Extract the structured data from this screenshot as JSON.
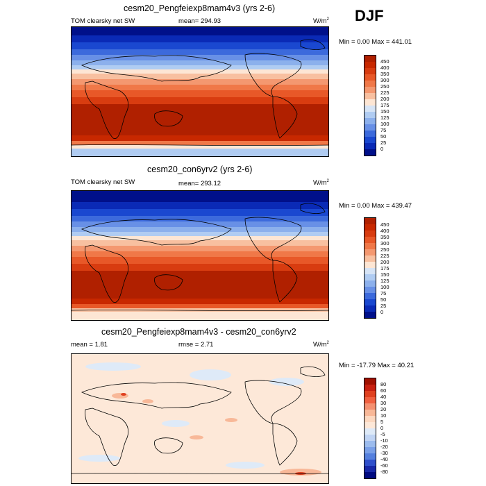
{
  "season": "DJF",
  "panels": [
    {
      "title": "cesm20_Pengfeiexp8mam4v3 (yrs 2-6)",
      "left_label": "TOM clearsky net SW",
      "mid_label": "mean=",
      "mid_value": "294.93",
      "units": "W/m",
      "units_sup": "2",
      "minmax": "Min =   0.00 Max = 441.01",
      "cbar_labels": [
        "450",
        "400",
        "350",
        "300",
        "250",
        "225",
        "200",
        "175",
        "150",
        "125",
        "100",
        "75",
        "50",
        "25",
        "0"
      ]
    },
    {
      "title": "cesm20_con6yrv2 (yrs 2-6)",
      "left_label": "TOM clearsky net SW",
      "mid_label": "mean=",
      "mid_value": "293.12",
      "units": "W/m",
      "units_sup": "2",
      "minmax": "Min =   0.00 Max = 439.47",
      "cbar_labels": [
        "450",
        "400",
        "350",
        "300",
        "250",
        "225",
        "200",
        "175",
        "150",
        "125",
        "100",
        "75",
        "50",
        "25",
        "0"
      ]
    },
    {
      "title": "cesm20_Pengfeiexp8mam4v3 - cesm20_con6yrv2",
      "left_label": "mean =    1.81",
      "mid_label": "rmse =",
      "mid_value": "2.71",
      "units": "W/m",
      "units_sup": "2",
      "minmax": "Min = -17.79 Max =  40.21",
      "cbar_labels": [
        "80",
        "60",
        "40",
        "30",
        "20",
        "10",
        "5",
        "0",
        "-5",
        "-10",
        "-20",
        "-30",
        "-40",
        "-60",
        "-80"
      ]
    }
  ],
  "colors": {
    "abs_scale": [
      "#b02000",
      "#c82800",
      "#d83c10",
      "#e85828",
      "#f07848",
      "#f49870",
      "#f8c0a0",
      "#fde6d4",
      "#d6e4f6",
      "#b0ccf2",
      "#8cb0ec",
      "#6890e6",
      "#3c6adc",
      "#1a48d0",
      "#0a2ab6",
      "#00108a"
    ],
    "diff_scale": [
      "#a01000",
      "#c82010",
      "#e04020",
      "#f06040",
      "#f49070",
      "#f8b898",
      "#fcd8c0",
      "#fde8d8",
      "#deeaf8",
      "#c0d4f4",
      "#9cbcee",
      "#7aa0e8",
      "#5580de",
      "#3050cc",
      "#1828a8",
      "#000a80"
    ]
  }
}
